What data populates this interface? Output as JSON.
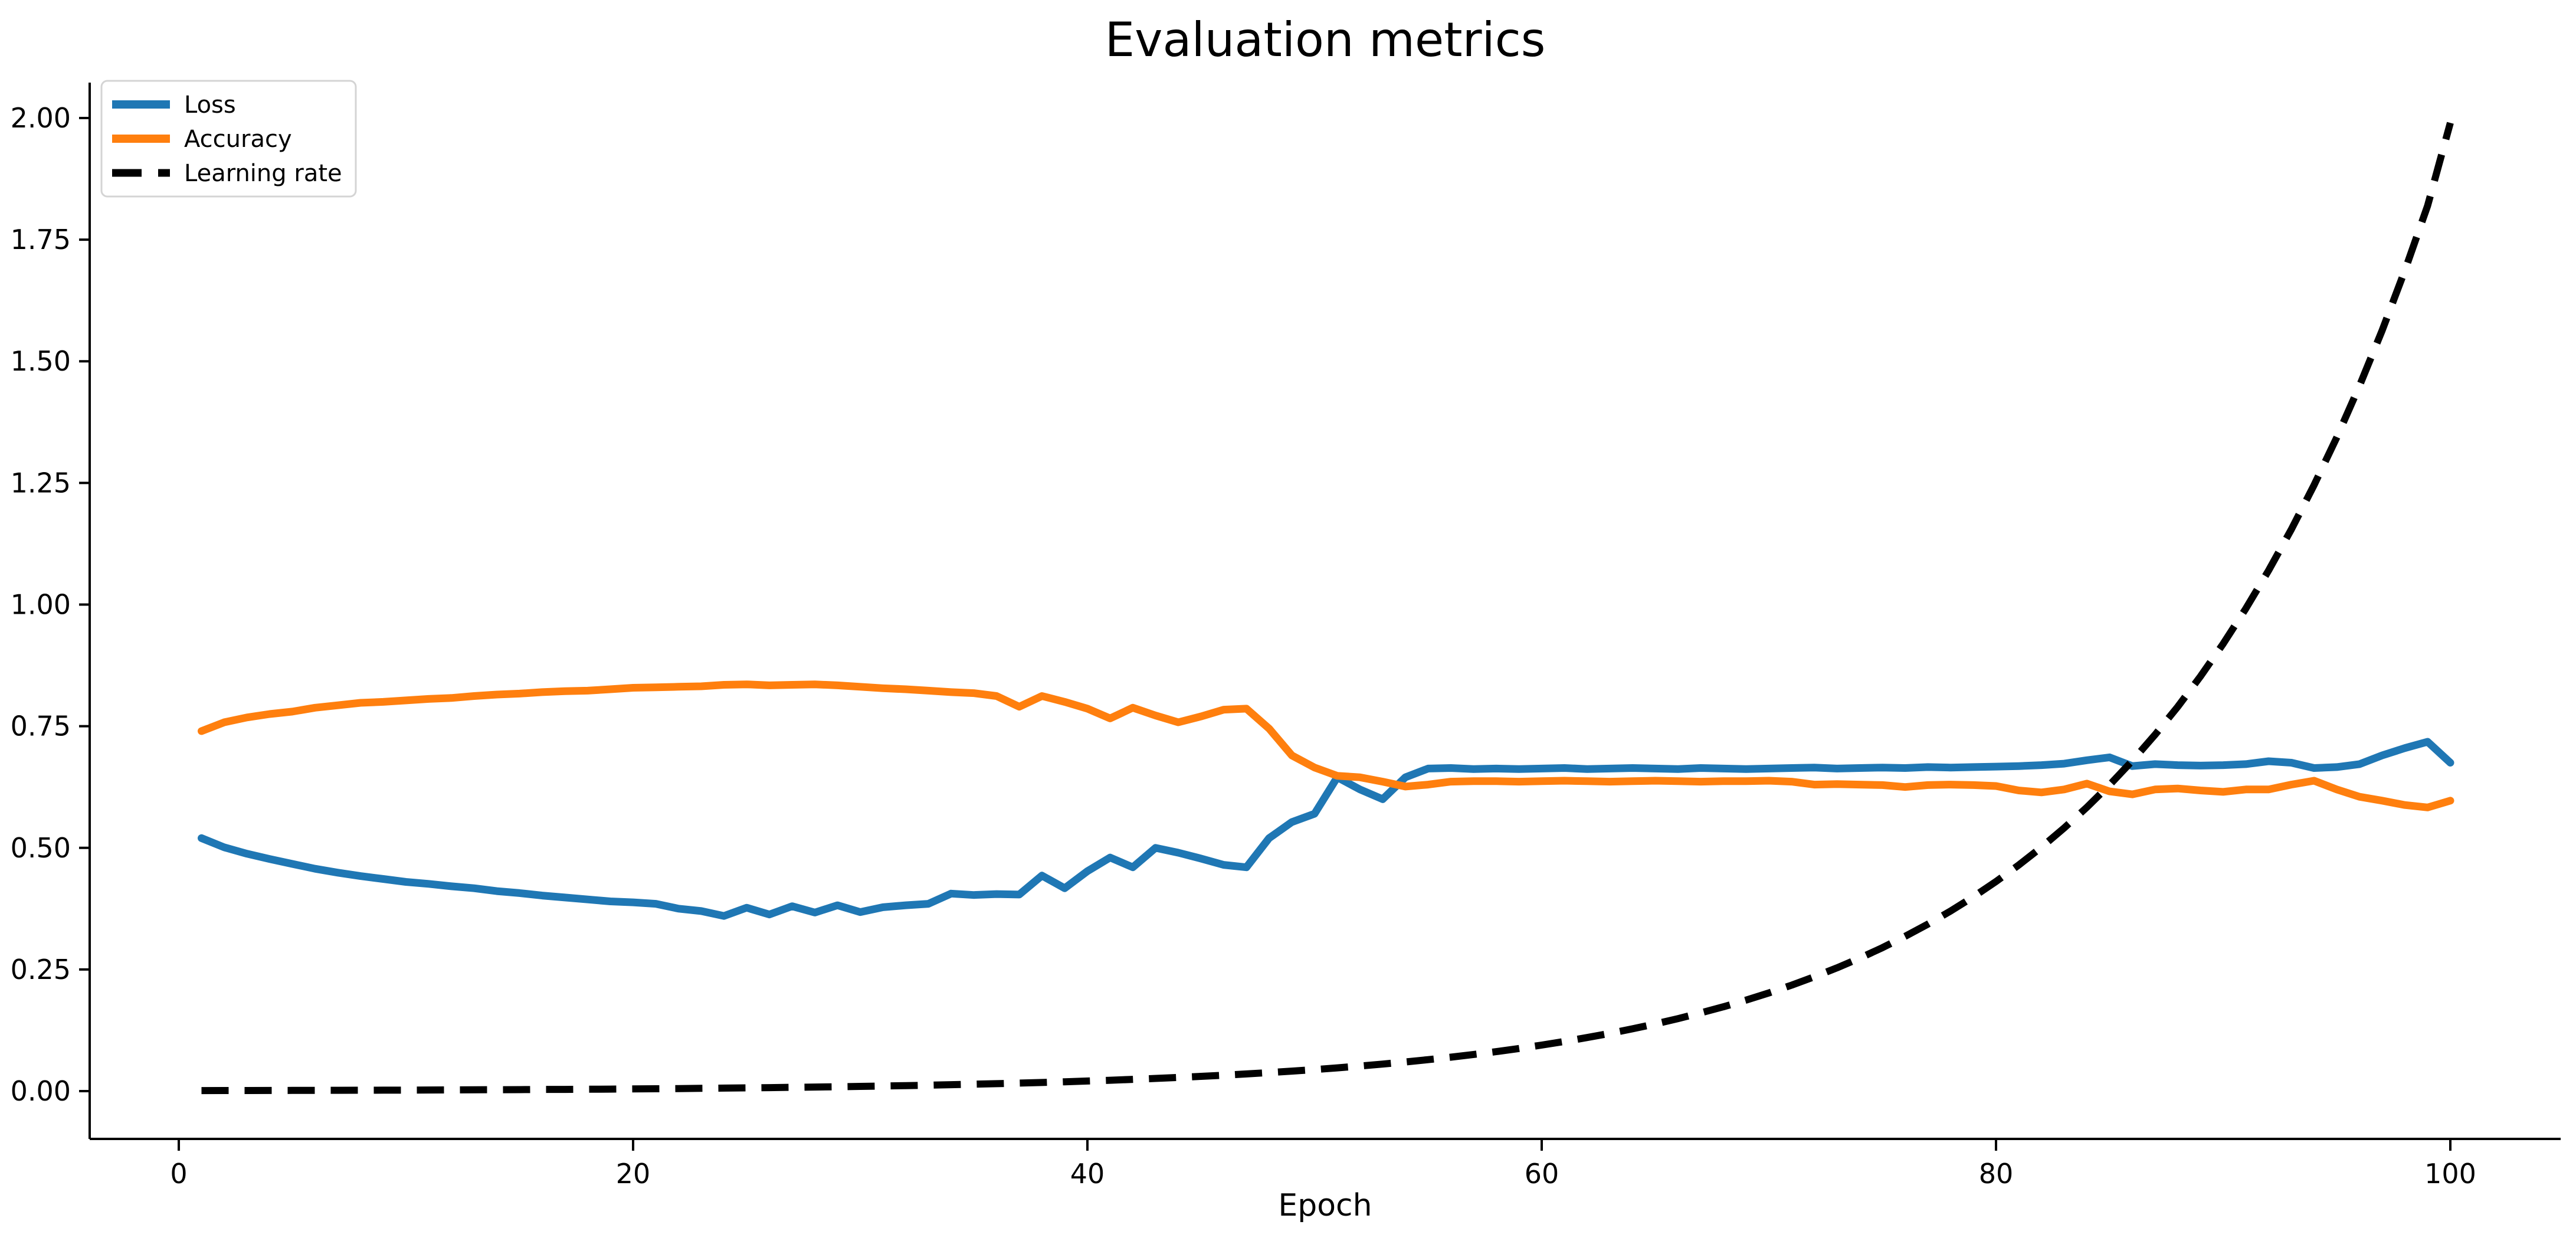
{
  "chart_data": {
    "type": "line",
    "title": "Evaluation metrics",
    "xlabel": "Epoch",
    "ylabel": "",
    "grid": false,
    "legend_position": "upper left",
    "xlim": [
      -3.923,
      104.857
    ],
    "ylim": [
      -0.0982,
      2.0727
    ],
    "xticks": [
      0,
      20,
      40,
      60,
      80,
      100
    ],
    "yticks": [
      "0.00",
      "0.25",
      "0.50",
      "0.75",
      "1.00",
      "1.25",
      "1.50",
      "1.75",
      "2.00"
    ],
    "ytick_values": [
      0,
      0.25,
      0.5,
      0.75,
      1.0,
      1.25,
      1.5,
      1.75,
      2.0
    ],
    "x": [
      1,
      2,
      3,
      4,
      5,
      6,
      7,
      8,
      9,
      10,
      11,
      12,
      13,
      14,
      15,
      16,
      17,
      18,
      19,
      20,
      21,
      22,
      23,
      24,
      25,
      26,
      27,
      28,
      29,
      30,
      31,
      32,
      33,
      34,
      35,
      36,
      37,
      38,
      39,
      40,
      41,
      42,
      43,
      44,
      45,
      46,
      47,
      48,
      49,
      50,
      51,
      52,
      53,
      54,
      55,
      56,
      57,
      58,
      59,
      60,
      61,
      62,
      63,
      64,
      65,
      66,
      67,
      68,
      69,
      70,
      71,
      72,
      73,
      74,
      75,
      76,
      77,
      78,
      79,
      80,
      81,
      82,
      83,
      84,
      85,
      86,
      87,
      88,
      89,
      90,
      91,
      92,
      93,
      94,
      95,
      96,
      97,
      98,
      99,
      100
    ],
    "series": [
      {
        "name": "Loss",
        "color": "#1f77b4",
        "style": "solid",
        "values": [
          0.52,
          0.501,
          0.488,
          0.477,
          0.467,
          0.457,
          0.449,
          0.442,
          0.436,
          0.43,
          0.426,
          0.421,
          0.417,
          0.411,
          0.407,
          0.402,
          0.398,
          0.394,
          0.39,
          0.388,
          0.385,
          0.375,
          0.37,
          0.36,
          0.377,
          0.363,
          0.38,
          0.367,
          0.382,
          0.368,
          0.378,
          0.382,
          0.385,
          0.406,
          0.403,
          0.405,
          0.404,
          0.443,
          0.417,
          0.452,
          0.48,
          0.46,
          0.5,
          0.49,
          0.478,
          0.465,
          0.46,
          0.52,
          0.553,
          0.57,
          0.645,
          0.62,
          0.6,
          0.645,
          0.663,
          0.664,
          0.662,
          0.663,
          0.662,
          0.663,
          0.664,
          0.662,
          0.663,
          0.664,
          0.663,
          0.662,
          0.664,
          0.663,
          0.662,
          0.663,
          0.664,
          0.665,
          0.663,
          0.664,
          0.665,
          0.664,
          0.666,
          0.665,
          0.666,
          0.667,
          0.668,
          0.67,
          0.673,
          0.68,
          0.686,
          0.668,
          0.672,
          0.67,
          0.669,
          0.67,
          0.672,
          0.678,
          0.675,
          0.664,
          0.666,
          0.672,
          0.69,
          0.705,
          0.718,
          0.675
        ]
      },
      {
        "name": "Accuracy",
        "color": "#ff7f0e",
        "style": "solid",
        "values": [
          0.74,
          0.758,
          0.768,
          0.775,
          0.78,
          0.788,
          0.793,
          0.798,
          0.8,
          0.803,
          0.806,
          0.808,
          0.812,
          0.815,
          0.817,
          0.82,
          0.822,
          0.823,
          0.826,
          0.829,
          0.83,
          0.831,
          0.832,
          0.835,
          0.836,
          0.834,
          0.835,
          0.836,
          0.834,
          0.831,
          0.828,
          0.826,
          0.823,
          0.82,
          0.818,
          0.812,
          0.79,
          0.812,
          0.8,
          0.786,
          0.766,
          0.788,
          0.772,
          0.758,
          0.77,
          0.784,
          0.786,
          0.745,
          0.69,
          0.665,
          0.648,
          0.645,
          0.636,
          0.626,
          0.63,
          0.636,
          0.637,
          0.637,
          0.636,
          0.637,
          0.638,
          0.637,
          0.636,
          0.637,
          0.638,
          0.637,
          0.636,
          0.637,
          0.637,
          0.638,
          0.636,
          0.63,
          0.631,
          0.63,
          0.629,
          0.625,
          0.629,
          0.63,
          0.629,
          0.627,
          0.618,
          0.614,
          0.62,
          0.632,
          0.616,
          0.61,
          0.62,
          0.622,
          0.618,
          0.615,
          0.62,
          0.62,
          0.63,
          0.638,
          0.62,
          0.605,
          0.597,
          0.588,
          0.583,
          0.597
        ]
      },
      {
        "name": "Learning rate",
        "color": "#000000",
        "style": "dashed",
        "values": [
          0.0011,
          0.0012,
          0.0013,
          0.0014,
          0.0015,
          0.0016,
          0.0017,
          0.0018,
          0.002,
          0.0021,
          0.0023,
          0.0025,
          0.0027,
          0.0029,
          0.0031,
          0.0034,
          0.0036,
          0.0039,
          0.0042,
          0.0046,
          0.0049,
          0.0053,
          0.0057,
          0.0062,
          0.0067,
          0.0072,
          0.0078,
          0.0084,
          0.009,
          0.0097,
          0.0105,
          0.0113,
          0.0122,
          0.0132,
          0.0142,
          0.0153,
          0.0165,
          0.0178,
          0.0192,
          0.0208,
          0.0224,
          0.0242,
          0.0261,
          0.0281,
          0.0303,
          0.0327,
          0.0353,
          0.0381,
          0.0411,
          0.0443,
          0.0478,
          0.0516,
          0.0556,
          0.06,
          0.0647,
          0.0698,
          0.0753,
          0.0812,
          0.0876,
          0.0946,
          0.102,
          0.1101,
          0.1187,
          0.1281,
          0.1382,
          0.149,
          0.1608,
          0.1734,
          0.1871,
          0.2018,
          0.2177,
          0.2349,
          0.2534,
          0.2733,
          0.2949,
          0.3181,
          0.3431,
          0.3702,
          0.3993,
          0.4308,
          0.4647,
          0.5013,
          0.5408,
          0.5834,
          0.6294,
          0.6789,
          0.7324,
          0.7901,
          0.8524,
          0.9195,
          0.992,
          1.0701,
          1.1544,
          1.2454,
          1.3435,
          1.4494,
          1.5636,
          1.6868,
          1.8197,
          1.99
        ]
      }
    ]
  }
}
